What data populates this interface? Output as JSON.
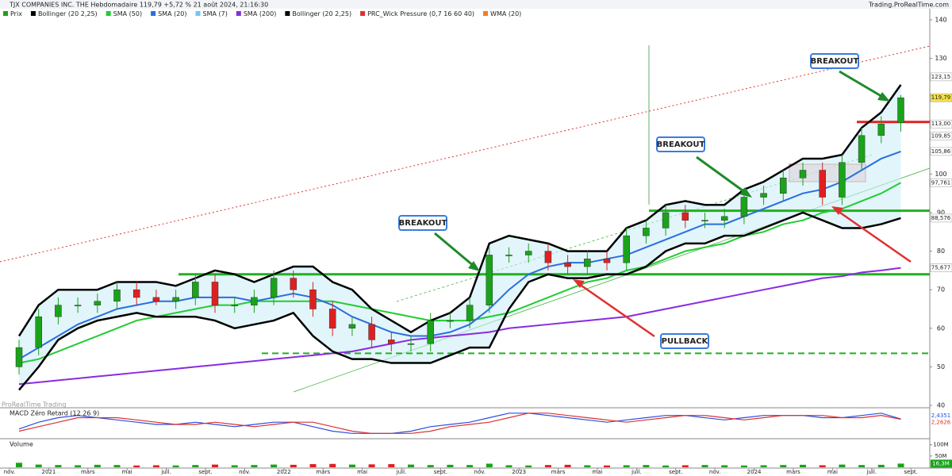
{
  "header": {
    "title": "TJX COMPANIES INC. THE Hebdomadaire 119,79 +5,72 % 21 août 2024, 21:16:30",
    "site": "Trading.ProRealTime.com",
    "watermark": "ProRealTime Trading"
  },
  "legend": [
    "Prix",
    "Bollinger (20 2,25)",
    "SMA (50)",
    "SMA (20)",
    "SMA (7)",
    "SMA (200)",
    "Bollinger (20 2,25)",
    "PRC_Wick Pressure (0,7 16 60 40)",
    "WMA (20)"
  ],
  "chart_data": [
    {
      "type": "candlestick",
      "categories": [
        "nov.",
        null,
        "2021",
        null,
        "mars",
        null,
        "mai",
        null,
        "juil.",
        null,
        "sept.",
        null,
        "nov.",
        null,
        "2022",
        null,
        "mars",
        null,
        "mai",
        null,
        "juil.",
        null,
        "sept.",
        null,
        "nov.",
        null,
        "2023",
        null,
        "mars",
        null,
        "mai",
        null,
        "juil.",
        null,
        "sept.",
        null,
        "nov.",
        null,
        "2024",
        null,
        "mars",
        null,
        "mai",
        null,
        "juil.",
        null,
        "sept."
      ],
      "open": [
        50,
        55,
        63,
        66,
        66,
        67,
        70,
        68,
        67,
        68,
        72,
        66,
        66,
        68,
        73,
        70,
        65,
        60,
        61,
        57,
        56,
        56,
        62,
        62,
        66,
        79,
        79,
        80,
        77,
        76,
        78,
        77,
        84,
        86,
        90,
        88,
        88,
        89,
        94,
        95,
        99,
        101,
        94,
        103,
        110,
        113.3,
        null
      ],
      "high": [
        57,
        65,
        68,
        68,
        69,
        72,
        72,
        70,
        70,
        74,
        74,
        68,
        70,
        75,
        75,
        72,
        67,
        63,
        63,
        59,
        58,
        64,
        64,
        68,
        81,
        81,
        82,
        82,
        79,
        80,
        80,
        86,
        88,
        92,
        92,
        90,
        91,
        96,
        97,
        101,
        103,
        103,
        105,
        112,
        115,
        120.5,
        null
      ],
      "low": [
        48,
        53,
        61,
        64,
        64,
        65,
        66,
        66,
        65,
        66,
        64,
        64,
        64,
        66,
        68,
        63,
        58,
        58,
        55,
        54,
        54,
        54,
        60,
        60,
        64,
        77,
        77,
        75,
        74,
        74,
        75,
        75,
        82,
        84,
        86,
        86,
        86,
        87,
        92,
        93,
        97,
        92,
        92,
        101,
        108,
        111,
        null
      ],
      "close": [
        55,
        63,
        66,
        66,
        67,
        70,
        68,
        67,
        68,
        72,
        66,
        66,
        68,
        73,
        70,
        65,
        60,
        61,
        57,
        56,
        56,
        62,
        62,
        66,
        79,
        79,
        80,
        77,
        76,
        78,
        77,
        84,
        86,
        90,
        88,
        88,
        89,
        94,
        95,
        99,
        101,
        94,
        103,
        110,
        113,
        119.79,
        null
      ],
      "up_color": "#1aa31a",
      "down_color": "#e02020",
      "series": [
        {
          "name": "Bollinger (20 2,25)",
          "color": "#000000",
          "values": [
            58,
            66,
            70,
            70,
            70,
            72,
            72,
            72,
            71,
            73,
            75,
            74,
            72,
            74,
            76,
            76,
            72,
            70,
            65,
            62,
            59,
            62,
            64,
            68,
            82,
            84,
            83,
            82,
            80,
            80,
            80,
            86,
            88,
            92,
            93,
            92,
            92,
            96,
            98,
            101,
            104,
            104,
            105,
            112,
            116,
            123.15,
            null
          ]
        },
        {
          "name": "Bollinger (20 2,25)",
          "color": "#000000",
          "values": [
            44,
            50,
            57,
            60,
            62,
            63,
            64,
            63,
            63,
            63,
            62,
            60,
            61,
            62,
            64,
            58,
            54,
            52,
            52,
            51,
            51,
            51,
            53,
            55,
            55,
            65,
            72,
            74,
            73,
            73,
            74,
            74,
            76,
            80,
            82,
            82,
            84,
            84,
            86,
            88,
            90,
            88,
            86,
            86,
            87,
            88.576,
            null
          ]
        },
        {
          "name": "SMA (20)",
          "color": "#2a6ee0",
          "values": [
            52,
            55,
            58,
            61,
            63,
            65,
            66,
            67,
            67,
            68,
            68,
            68,
            67,
            68,
            69,
            68,
            66,
            63,
            61,
            59,
            58,
            58,
            59,
            61,
            65,
            70,
            74,
            76,
            77,
            77,
            78,
            79,
            81,
            83,
            85,
            87,
            87,
            89,
            91,
            93,
            95,
            96,
            98,
            101,
            104,
            105.86,
            null
          ]
        },
        {
          "name": "SMA (50)",
          "color": "#22cc33",
          "values": [
            51,
            52,
            54,
            56,
            58,
            60,
            62,
            63,
            64,
            65,
            66,
            66,
            67,
            67,
            67,
            67,
            67,
            66,
            65,
            64,
            63,
            62,
            62,
            62,
            63,
            64,
            66,
            68,
            70,
            72,
            73,
            75,
            76,
            78,
            80,
            81,
            82,
            84,
            85,
            87,
            88,
            90,
            91,
            93,
            95,
            97.761,
            null
          ]
        },
        {
          "name": "SMA (200)",
          "color": "#8a2be2",
          "values": [
            45.5,
            46,
            46.5,
            47,
            47.5,
            48,
            48.5,
            49,
            49.5,
            50,
            50.5,
            51,
            51.5,
            52,
            52.5,
            53,
            53.5,
            54,
            55,
            56,
            57,
            57.5,
            58,
            58.5,
            59,
            60,
            60.5,
            61,
            61.5,
            62,
            62.5,
            63,
            64,
            65,
            66,
            67,
            68,
            69,
            70,
            71,
            72,
            73,
            73.5,
            74.5,
            75,
            75.677,
            null
          ]
        }
      ],
      "ylim": [
        40,
        140
      ],
      "yticks": [
        40,
        50,
        60,
        70,
        80,
        90,
        100,
        130,
        140
      ],
      "price_labels": [
        {
          "value": 123.15,
          "label": "123,15",
          "color": "#ffffff"
        },
        {
          "value": 119.79,
          "label": "119,79",
          "color": "#f5e04a"
        },
        {
          "value": 113,
          "label": "113,00",
          "color": "#ffffff"
        },
        {
          "value": 109.85,
          "label": "109,85",
          "color": "#ffffff"
        },
        {
          "value": 105.86,
          "label": "105,86",
          "color": "#ffffff"
        },
        {
          "value": 97.761,
          "label": "97,761",
          "color": "#ffffff"
        },
        {
          "value": 88.576,
          "label": "88,576",
          "color": "#ffffff"
        },
        {
          "value": 75.677,
          "label": "75,677",
          "color": "#ffffff"
        }
      ],
      "levels": [
        {
          "value": 74,
          "color": "#22b022"
        },
        {
          "value": 90.5,
          "color": "#22b022"
        },
        {
          "value": 53.5,
          "color": "#22b022"
        },
        {
          "value": 113.5,
          "color": "#e02020"
        }
      ],
      "annotations": [
        "BREAKOUT",
        "BREAKOUT",
        "BREAKOUT",
        "PULLBACK"
      ]
    },
    {
      "type": "line",
      "title": "MACD Zéro Retard (12 26 9)",
      "series": [
        {
          "name": "MACD",
          "color": "#2a4ee0",
          "values": [
            -2,
            1,
            3,
            4,
            3,
            2,
            1,
            0,
            0,
            1,
            0,
            -1,
            0,
            1,
            1,
            -1,
            -3,
            -4,
            -4,
            -4,
            -3,
            -1,
            0,
            1,
            3,
            5,
            5,
            4,
            3,
            2,
            1,
            2,
            3,
            4,
            4,
            3,
            2,
            3,
            4,
            4,
            4,
            3,
            3,
            4,
            5,
            2.4351,
            null
          ]
        },
        {
          "name": "Signal",
          "color": "#e03030",
          "values": [
            -3,
            -1,
            1,
            3,
            3,
            3,
            2,
            1,
            0,
            0,
            1,
            0,
            -1,
            0,
            1,
            1,
            -1,
            -3,
            -4,
            -4,
            -4,
            -3,
            -1,
            0,
            1,
            3,
            5,
            5,
            4,
            3,
            2,
            1,
            2,
            3,
            4,
            4,
            3,
            2,
            3,
            4,
            4,
            4,
            3,
            3,
            4,
            2.2626,
            null
          ]
        }
      ],
      "ylim": [
        -6,
        6
      ],
      "value_labels": [
        "2,4351",
        "2,2626"
      ]
    },
    {
      "type": "bar",
      "title": "Volume",
      "values": [
        20,
        12,
        10,
        9,
        11,
        10,
        8,
        9,
        8,
        10,
        12,
        9,
        10,
        12,
        11,
        14,
        15,
        12,
        13,
        14,
        12,
        10,
        11,
        10,
        16,
        9,
        8,
        10,
        11,
        9,
        8,
        9,
        10,
        8,
        9,
        10,
        9,
        8,
        9,
        10,
        11,
        9,
        12,
        10,
        11,
        16.3,
        null
      ],
      "ylim": [
        0,
        120
      ],
      "yticks": [
        {
          "value": 100,
          "label": "100M"
        },
        {
          "value": 50,
          "label": "50M"
        }
      ],
      "value_labels": {
        "45": "16,3M"
      }
    }
  ]
}
